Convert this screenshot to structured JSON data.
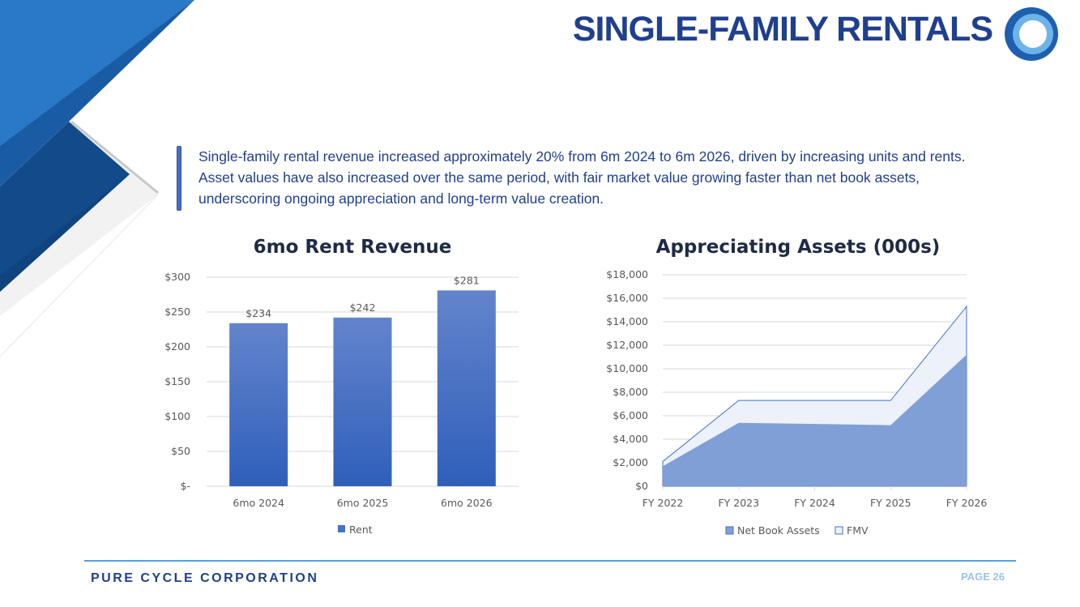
{
  "header": {
    "title": "SINGLE-FAMILY RENTALS"
  },
  "summary": "Single-family rental revenue increased approximately 20% from 6m 2024 to 6m 2026, driven by increasing units and rents. Asset values have also increased over the same period, with fair market value growing faster than net book assets, underscoring ongoing appreciation and long-term value creation.",
  "footer": {
    "company": "PURE CYCLE CORPORATION",
    "page": "PAGE 26"
  },
  "colors": {
    "brand": "#1f3f8f",
    "bar": "#4472c4",
    "nba": "#7f9fd6",
    "fmv": "#edf1f9"
  },
  "chart_data": [
    {
      "type": "bar",
      "title": "6mo Rent Revenue",
      "categories": [
        "6mo 2024",
        "6mo 2025",
        "6mo 2026"
      ],
      "series": [
        {
          "name": "Rent",
          "values": [
            234,
            242,
            281
          ]
        }
      ],
      "data_labels": [
        "$234",
        "$242",
        "$281"
      ],
      "yticks": [
        "$-",
        "$50",
        "$100",
        "$150",
        "$200",
        "$250",
        "$300"
      ],
      "ylim": [
        0,
        300
      ],
      "grid": true,
      "legend": "bottom"
    },
    {
      "type": "area",
      "title": "Appreciating Assets (000s)",
      "categories": [
        "FY 2022",
        "FY 2023",
        "FY 2024",
        "FY 2025",
        "FY 2026"
      ],
      "series": [
        {
          "name": "Net Book Assets",
          "values": [
            1700,
            5400,
            5300,
            5200,
            11200
          ]
        },
        {
          "name": "FMV",
          "values": [
            2100,
            7300,
            7300,
            7300,
            15300
          ]
        }
      ],
      "yticks": [
        "$0",
        "$2,000",
        "$4,000",
        "$6,000",
        "$8,000",
        "$10,000",
        "$12,000",
        "$14,000",
        "$16,000",
        "$18,000"
      ],
      "ylim": [
        0,
        18000
      ],
      "grid": true,
      "legend": "bottom"
    }
  ]
}
